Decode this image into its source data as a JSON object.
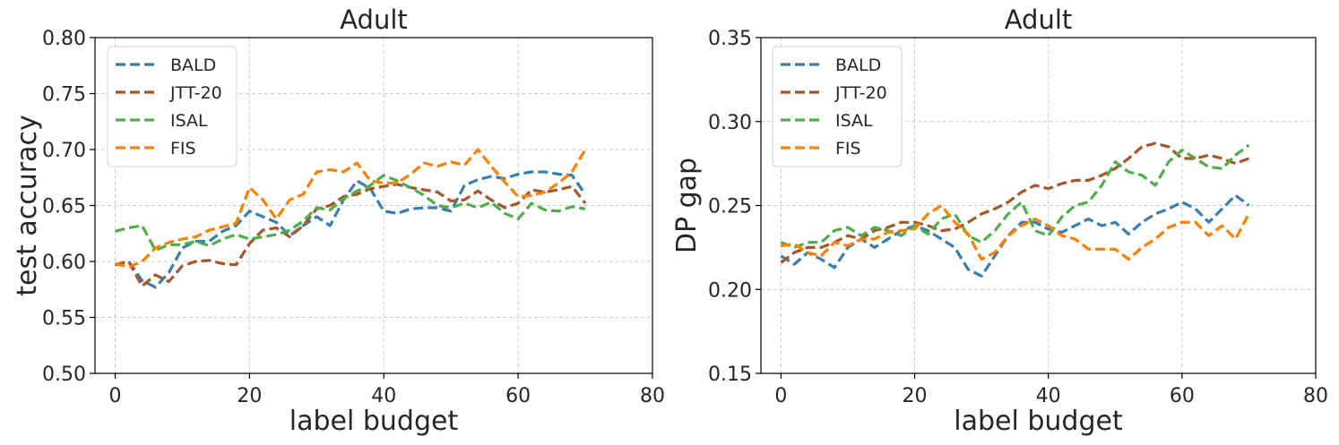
{
  "chart_data": [
    {
      "type": "line",
      "title": "Adult",
      "xlabel": "label budget",
      "ylabel": "test accuracy",
      "xlim": [
        -3,
        80
      ],
      "ylim": [
        0.5,
        0.8
      ],
      "xticks": [
        0,
        20,
        40,
        60,
        80
      ],
      "xtick_labels": [
        "0",
        "20",
        "40",
        "60",
        "80"
      ],
      "yticks": [
        0.5,
        0.55,
        0.6,
        0.65,
        0.7,
        0.75,
        0.8
      ],
      "ytick_labels": [
        "0.50",
        "0.55",
        "0.60",
        "0.65",
        "0.70",
        "0.75",
        "0.80"
      ],
      "grid": true,
      "legend_position": "top-left",
      "series": [
        {
          "name": "BALD",
          "color": "#377eb8",
          "x": [
            0,
            2,
            4,
            6,
            8,
            10,
            12,
            14,
            16,
            18,
            20,
            22,
            24,
            26,
            28,
            30,
            32,
            34,
            36,
            38,
            40,
            42,
            44,
            46,
            48,
            50,
            52,
            54,
            56,
            58,
            60,
            62,
            64,
            66,
            68,
            70
          ],
          "values": [
            0.597,
            0.6,
            0.583,
            0.577,
            0.59,
            0.612,
            0.618,
            0.618,
            0.627,
            0.632,
            0.645,
            0.64,
            0.635,
            0.623,
            0.632,
            0.64,
            0.632,
            0.655,
            0.672,
            0.665,
            0.645,
            0.643,
            0.647,
            0.648,
            0.648,
            0.645,
            0.668,
            0.673,
            0.676,
            0.674,
            0.678,
            0.68,
            0.68,
            0.678,
            0.677,
            0.66
          ]
        },
        {
          "name": "JTT-20",
          "color": "#a65628",
          "x": [
            0,
            2,
            4,
            6,
            8,
            10,
            12,
            14,
            16,
            18,
            20,
            22,
            24,
            26,
            28,
            30,
            32,
            34,
            36,
            38,
            40,
            42,
            44,
            46,
            48,
            50,
            52,
            54,
            56,
            58,
            60,
            62,
            64,
            66,
            68,
            70
          ],
          "values": [
            0.597,
            0.6,
            0.578,
            0.588,
            0.582,
            0.596,
            0.6,
            0.601,
            0.598,
            0.597,
            0.616,
            0.628,
            0.63,
            0.622,
            0.632,
            0.647,
            0.65,
            0.658,
            0.66,
            0.665,
            0.667,
            0.669,
            0.666,
            0.664,
            0.662,
            0.654,
            0.655,
            0.663,
            0.655,
            0.648,
            0.652,
            0.664,
            0.662,
            0.664,
            0.667,
            0.652
          ]
        },
        {
          "name": "ISAL",
          "color": "#4daf4a",
          "x": [
            0,
            2,
            4,
            6,
            8,
            10,
            12,
            14,
            16,
            18,
            20,
            22,
            24,
            26,
            28,
            30,
            32,
            34,
            36,
            38,
            40,
            42,
            44,
            46,
            48,
            50,
            52,
            54,
            56,
            58,
            60,
            62,
            64,
            66,
            68,
            70
          ],
          "values": [
            0.627,
            0.63,
            0.632,
            0.61,
            0.615,
            0.615,
            0.618,
            0.614,
            0.62,
            0.624,
            0.62,
            0.622,
            0.624,
            0.628,
            0.636,
            0.648,
            0.646,
            0.656,
            0.663,
            0.668,
            0.677,
            0.672,
            0.666,
            0.659,
            0.65,
            0.648,
            0.652,
            0.648,
            0.653,
            0.643,
            0.638,
            0.652,
            0.646,
            0.645,
            0.649,
            0.647
          ]
        },
        {
          "name": "FIS",
          "color": "#ff7f00",
          "x": [
            0,
            2,
            4,
            6,
            8,
            10,
            12,
            14,
            16,
            18,
            20,
            22,
            24,
            26,
            28,
            30,
            32,
            34,
            36,
            38,
            40,
            42,
            44,
            46,
            48,
            50,
            52,
            54,
            56,
            58,
            60,
            62,
            64,
            66,
            68,
            70
          ],
          "values": [
            0.598,
            0.595,
            0.6,
            0.612,
            0.617,
            0.62,
            0.622,
            0.628,
            0.631,
            0.634,
            0.666,
            0.655,
            0.638,
            0.655,
            0.66,
            0.68,
            0.682,
            0.68,
            0.688,
            0.672,
            0.67,
            0.67,
            0.678,
            0.688,
            0.685,
            0.689,
            0.686,
            0.7,
            0.685,
            0.671,
            0.658,
            0.659,
            0.662,
            0.67,
            0.68,
            0.7
          ]
        }
      ]
    },
    {
      "type": "line",
      "title": "Adult",
      "xlabel": "label budget",
      "ylabel": "DP gap",
      "xlim": [
        -3,
        80
      ],
      "ylim": [
        0.15,
        0.35
      ],
      "xticks": [
        0,
        20,
        40,
        60,
        80
      ],
      "xtick_labels": [
        "0",
        "20",
        "40",
        "60",
        "80"
      ],
      "yticks": [
        0.15,
        0.2,
        0.25,
        0.3,
        0.35
      ],
      "ytick_labels": [
        "0.15",
        "0.20",
        "0.25",
        "0.30",
        "0.35"
      ],
      "grid": true,
      "legend_position": "top-left",
      "series": [
        {
          "name": "BALD",
          "color": "#377eb8",
          "x": [
            0,
            2,
            4,
            6,
            8,
            10,
            12,
            14,
            16,
            18,
            20,
            22,
            24,
            26,
            28,
            30,
            32,
            34,
            36,
            38,
            40,
            42,
            44,
            46,
            48,
            50,
            52,
            54,
            56,
            58,
            60,
            62,
            64,
            66,
            68,
            70
          ],
          "values": [
            0.22,
            0.215,
            0.222,
            0.218,
            0.213,
            0.225,
            0.23,
            0.225,
            0.23,
            0.235,
            0.238,
            0.235,
            0.23,
            0.225,
            0.212,
            0.208,
            0.22,
            0.232,
            0.24,
            0.24,
            0.236,
            0.234,
            0.238,
            0.242,
            0.238,
            0.24,
            0.233,
            0.24,
            0.245,
            0.248,
            0.252,
            0.248,
            0.24,
            0.248,
            0.256,
            0.25
          ]
        },
        {
          "name": "JTT-20",
          "color": "#a65628",
          "x": [
            0,
            2,
            4,
            6,
            8,
            10,
            12,
            14,
            16,
            18,
            20,
            22,
            24,
            26,
            28,
            30,
            32,
            34,
            36,
            38,
            40,
            42,
            44,
            46,
            48,
            50,
            52,
            54,
            56,
            58,
            60,
            62,
            64,
            66,
            68,
            70
          ],
          "values": [
            0.216,
            0.222,
            0.225,
            0.225,
            0.228,
            0.232,
            0.23,
            0.235,
            0.237,
            0.24,
            0.24,
            0.238,
            0.235,
            0.236,
            0.24,
            0.245,
            0.248,
            0.252,
            0.258,
            0.262,
            0.26,
            0.263,
            0.265,
            0.265,
            0.268,
            0.272,
            0.278,
            0.285,
            0.287,
            0.285,
            0.278,
            0.278,
            0.28,
            0.278,
            0.275,
            0.278
          ]
        },
        {
          "name": "ISAL",
          "color": "#4daf4a",
          "x": [
            0,
            2,
            4,
            6,
            8,
            10,
            12,
            14,
            16,
            18,
            20,
            22,
            24,
            26,
            28,
            30,
            32,
            34,
            36,
            38,
            40,
            42,
            44,
            46,
            48,
            50,
            52,
            54,
            56,
            58,
            60,
            62,
            64,
            66,
            68,
            70
          ],
          "values": [
            0.228,
            0.225,
            0.228,
            0.228,
            0.235,
            0.237,
            0.232,
            0.237,
            0.235,
            0.232,
            0.238,
            0.233,
            0.242,
            0.245,
            0.232,
            0.228,
            0.235,
            0.245,
            0.252,
            0.235,
            0.232,
            0.243,
            0.25,
            0.252,
            0.262,
            0.276,
            0.27,
            0.268,
            0.262,
            0.276,
            0.283,
            0.278,
            0.273,
            0.272,
            0.28,
            0.286
          ]
        },
        {
          "name": "FIS",
          "color": "#ff7f00",
          "x": [
            0,
            2,
            4,
            6,
            8,
            10,
            12,
            14,
            16,
            18,
            20,
            22,
            24,
            26,
            28,
            30,
            32,
            34,
            36,
            38,
            40,
            42,
            44,
            46,
            48,
            50,
            52,
            54,
            56,
            58,
            60,
            62,
            64,
            66,
            68,
            70
          ],
          "values": [
            0.226,
            0.227,
            0.222,
            0.22,
            0.228,
            0.226,
            0.23,
            0.23,
            0.234,
            0.235,
            0.236,
            0.245,
            0.25,
            0.24,
            0.233,
            0.218,
            0.222,
            0.232,
            0.238,
            0.242,
            0.238,
            0.232,
            0.23,
            0.224,
            0.224,
            0.224,
            0.218,
            0.225,
            0.23,
            0.237,
            0.24,
            0.24,
            0.232,
            0.238,
            0.23,
            0.245
          ]
        }
      ]
    }
  ]
}
